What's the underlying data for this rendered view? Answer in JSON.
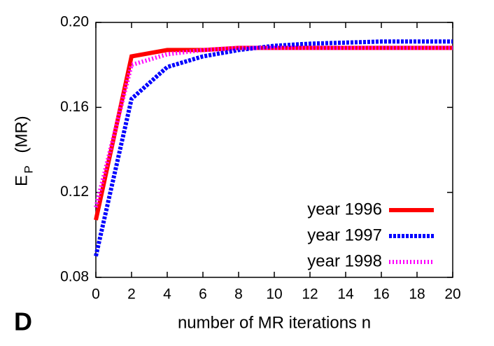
{
  "chart_data": {
    "type": "line",
    "panel_label": "D",
    "xlabel": "number of MR iterations n",
    "ylabel": {
      "main": "E",
      "sub": "P",
      "unit": "(MR)"
    },
    "x": [
      0,
      2,
      4,
      6,
      8,
      10,
      12,
      14,
      16,
      18,
      20
    ],
    "xlim": [
      0,
      20
    ],
    "xticks": [
      0,
      2,
      4,
      6,
      8,
      10,
      12,
      14,
      16,
      18,
      20
    ],
    "ylim": [
      0.08,
      0.2
    ],
    "yticks": [
      0.08,
      0.12,
      0.16,
      {
        "value": 0.2,
        "label": "0.20"
      }
    ],
    "legend": "lower right",
    "series": [
      {
        "name": "year 1996",
        "color": "#ff0000",
        "line_style": "solid",
        "values": [
          0.107,
          0.184,
          0.187,
          0.187,
          0.188,
          0.188,
          0.188,
          0.188,
          0.188,
          0.188,
          0.188
        ]
      },
      {
        "name": "year 1997",
        "color": "#0000ff",
        "line_style": "dashed",
        "values": [
          0.09,
          0.164,
          0.179,
          0.184,
          0.187,
          0.189,
          0.19,
          0.1905,
          0.191,
          0.191,
          0.191
        ]
      },
      {
        "name": "year 1998",
        "color": "#ff00ff",
        "line_style": "dotted",
        "values": [
          0.113,
          0.18,
          0.185,
          0.187,
          0.188,
          0.188,
          0.188,
          0.188,
          0.188,
          0.188,
          0.188
        ]
      }
    ]
  }
}
